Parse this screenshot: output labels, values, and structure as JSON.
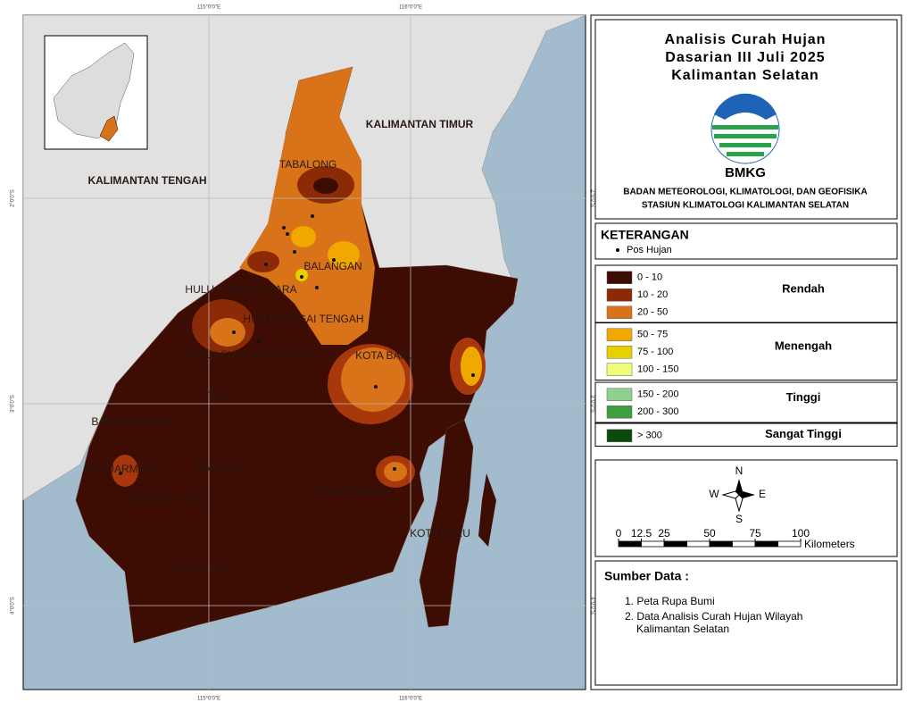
{
  "map": {
    "graticule": {
      "top": [
        "115°0'0\"E",
        "116°0'0\"E"
      ],
      "bottom": [
        "115°0'0\"E",
        "116°0'0\"E"
      ],
      "left": [
        "2°0'0\"S",
        "3°0'0\"S",
        "4°0'0\"S"
      ],
      "right": [
        "2°0'0\"S",
        "3°0'0\"S",
        "4°0'0\"S"
      ]
    },
    "labels": [
      "KALIMANTAN TIMUR",
      "KALIMANTAN TENGAH",
      "TABALONG",
      "BALANGAN",
      "HULU SUNGAI UTARA",
      "HULU SUNGAI TENGAH",
      "HULU SUNGAI SELATAN",
      "KOTA BARU",
      "TAPIN",
      "BARITO KUALA",
      "BANJARMASIN",
      "BANJAR",
      "BANJAR BARU",
      "TANAH BUMBU",
      "KOTA BARU",
      "TANAH LAUT"
    ]
  },
  "header": {
    "title": [
      "Analisis Curah Hujan",
      "Dasarian III Juli 2025",
      "Kalimantan Selatan"
    ],
    "logo_text": "BMKG",
    "agency": [
      "BADAN METEOROLOGI, KLIMATOLOGI, DAN GEOFISIKA",
      "STASIUN KLIMATOLOGI KALIMANTAN SELATAN"
    ]
  },
  "legend": {
    "title": "KETERANGAN",
    "point_label": "Pos Hujan",
    "groups": [
      {
        "name": "Rendah",
        "classes": [
          {
            "label": "0 - 10",
            "color": "#3d0c02"
          },
          {
            "label": "10 - 20",
            "color": "#8b2a06"
          },
          {
            "label": "20 - 50",
            "color": "#d8731a"
          }
        ]
      },
      {
        "name": "Menengah",
        "classes": [
          {
            "label": "50 - 75",
            "color": "#f0a800"
          },
          {
            "label": "75 - 100",
            "color": "#e6d000"
          },
          {
            "label": "100 - 150",
            "color": "#eeff77"
          }
        ]
      },
      {
        "name": "Tinggi",
        "classes": [
          {
            "label": "150 - 200",
            "color": "#8fd08f"
          },
          {
            "label": "200 - 300",
            "color": "#3f9e3f"
          }
        ]
      },
      {
        "name": "Sangat Tinggi",
        "classes": [
          {
            "label": "> 300",
            "color": "#0b4a0b"
          }
        ]
      }
    ]
  },
  "compass": {
    "n": "N",
    "s": "S",
    "e": "E",
    "w": "W"
  },
  "scale": {
    "ticks": [
      0,
      12.5,
      25,
      50,
      75,
      100
    ],
    "unit": "Kilometers"
  },
  "source": {
    "title": "Sumber Data :",
    "items": [
      "1. Peta Rupa Bumi",
      "2. Data Analisis Curah Hujan Wilayah",
      "Kalimantan Selatan"
    ]
  }
}
